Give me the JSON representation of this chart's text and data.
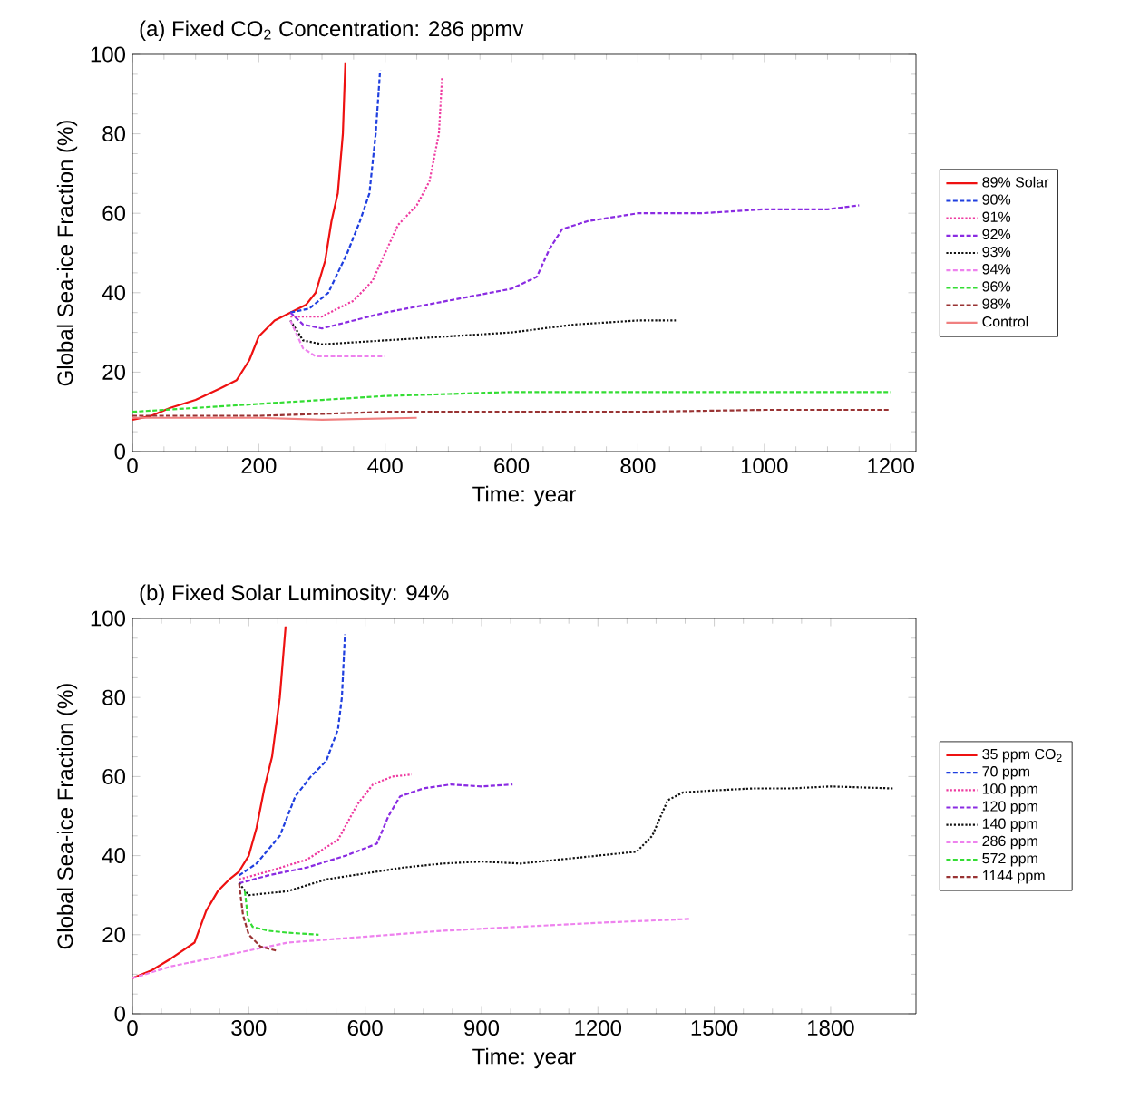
{
  "chart_data": [
    {
      "type": "line",
      "title": "(a) Fixed CO$_{2}$ Concentration: 286 ppmv",
      "xlabel": "Time: year",
      "ylabel": "Global Sea-ice Fraction (%)",
      "xlim": [
        0,
        1240
      ],
      "ylim": [
        0,
        100
      ],
      "xticks": [
        0,
        200,
        400,
        600,
        800,
        1000,
        1200
      ],
      "yticks": [
        0,
        20,
        40,
        60,
        80,
        100
      ],
      "legend": "right",
      "series": [
        {
          "name": "89% Solar",
          "color": "#ee1111",
          "line_style": "solid",
          "x": [
            0,
            30,
            60,
            100,
            140,
            165,
            185,
            200,
            225,
            250,
            275,
            290,
            305,
            315,
            325,
            333,
            337
          ],
          "values": [
            8,
            9,
            11,
            13,
            16,
            18,
            23,
            29,
            33,
            35,
            37,
            40,
            48,
            58,
            65,
            80,
            98
          ]
        },
        {
          "name": "90%",
          "color": "#1f3fdf",
          "line_style": "dashed",
          "x": [
            250,
            280,
            310,
            340,
            360,
            375,
            385,
            392
          ],
          "values": [
            35,
            36,
            40,
            50,
            58,
            65,
            80,
            96
          ]
        },
        {
          "name": "91%",
          "color": "#ee3aa0",
          "line_style": "dotted",
          "x": [
            250,
            300,
            350,
            380,
            400,
            420,
            450,
            470,
            485,
            490
          ],
          "values": [
            34,
            34,
            38,
            43,
            50,
            57,
            62,
            68,
            80,
            94
          ]
        },
        {
          "name": "92%",
          "color": "#8a2be2",
          "line_style": "dashed",
          "x": [
            250,
            270,
            300,
            350,
            400,
            500,
            600,
            640,
            660,
            680,
            720,
            800,
            900,
            1000,
            1050,
            1100,
            1150
          ],
          "values": [
            35,
            32,
            31,
            33,
            35,
            38,
            41,
            44,
            51,
            56,
            58,
            60,
            60,
            61,
            61,
            61,
            62
          ]
        },
        {
          "name": "93%",
          "color": "#111111",
          "line_style": "dotted",
          "x": [
            250,
            270,
            300,
            400,
            500,
            600,
            650,
            700,
            800,
            860
          ],
          "values": [
            33,
            28,
            27,
            28,
            29,
            30,
            31,
            32,
            33,
            33
          ]
        },
        {
          "name": "94%",
          "color": "#ee82ee",
          "line_style": "dashed",
          "x": [
            250,
            270,
            290,
            350,
            400
          ],
          "values": [
            33,
            26,
            24,
            24,
            24
          ]
        },
        {
          "name": "96%",
          "color": "#33dd33",
          "line_style": "dashed",
          "x": [
            0,
            100,
            200,
            300,
            400,
            500,
            600,
            800,
            1000,
            1200
          ],
          "values": [
            10,
            11,
            12,
            13,
            14,
            14.5,
            15,
            15,
            15,
            15
          ]
        },
        {
          "name": "98%",
          "color": "#993333",
          "line_style": "dashed",
          "x": [
            0,
            200,
            400,
            600,
            800,
            1000,
            1200
          ],
          "values": [
            9,
            9,
            10,
            10,
            10,
            10.5,
            10.5
          ]
        },
        {
          "name": "Control",
          "color": "#f08080",
          "line_style": "solid",
          "x": [
            0,
            200,
            300,
            450
          ],
          "values": [
            8.5,
            8.5,
            8,
            8.5
          ]
        }
      ]
    },
    {
      "type": "line",
      "title": "(b) Fixed Solar Luminosity: 94%",
      "xlabel": "Time: year",
      "ylabel": "Global Sea-ice Fraction (%)",
      "xlim": [
        0,
        2020
      ],
      "ylim": [
        0,
        100
      ],
      "xticks": [
        0,
        300,
        600,
        900,
        1200,
        1500,
        1800
      ],
      "yticks": [
        0,
        20,
        40,
        60,
        80,
        100
      ],
      "legend": "right",
      "series": [
        {
          "name": "35 ppm CO$_{2}$",
          "color": "#ee1111",
          "line_style": "solid",
          "x": [
            0,
            50,
            100,
            160,
            190,
            220,
            250,
            275,
            300,
            320,
            340,
            360,
            380,
            395
          ],
          "values": [
            9,
            11,
            14,
            18,
            26,
            31,
            34,
            36,
            40,
            47,
            57,
            65,
            80,
            98
          ]
        },
        {
          "name": "70 ppm",
          "color": "#1f3fdf",
          "line_style": "dashed",
          "x": [
            275,
            320,
            380,
            420,
            460,
            500,
            530,
            540,
            548
          ],
          "values": [
            35,
            38,
            45,
            55,
            60,
            64,
            72,
            80,
            96
          ]
        },
        {
          "name": "100 ppm",
          "color": "#ee3aa0",
          "line_style": "dotted",
          "x": [
            275,
            350,
            450,
            530,
            580,
            620,
            670,
            720
          ],
          "values": [
            34,
            36,
            39,
            44,
            53,
            58,
            60,
            60.5
          ]
        },
        {
          "name": "120 ppm",
          "color": "#8a2be2",
          "line_style": "dashed",
          "x": [
            275,
            350,
            450,
            550,
            630,
            660,
            690,
            750,
            820,
            900,
            980
          ],
          "values": [
            33,
            35,
            37,
            40,
            43,
            50,
            55,
            57,
            58,
            57.5,
            58
          ]
        },
        {
          "name": "140 ppm",
          "color": "#111111",
          "line_style": "dotted",
          "x": [
            275,
            300,
            400,
            500,
            600,
            700,
            800,
            900,
            1000,
            1100,
            1200,
            1300,
            1340,
            1380,
            1420,
            1500,
            1600,
            1700,
            1800,
            1960
          ],
          "values": [
            33,
            30,
            31,
            34,
            35.5,
            37,
            38,
            38.5,
            38,
            39,
            40,
            41,
            45,
            54,
            56,
            56.5,
            57,
            57,
            57.5,
            57
          ]
        },
        {
          "name": "286 ppm",
          "color": "#ee82ee",
          "line_style": "dashed",
          "x": [
            0,
            100,
            200,
            300,
            400,
            600,
            800,
            1000,
            1200,
            1440
          ],
          "values": [
            9,
            12,
            14,
            16,
            18,
            19.5,
            21,
            22,
            23,
            24
          ]
        },
        {
          "name": "572 ppm",
          "color": "#33dd33",
          "line_style": "dashed",
          "x": [
            290,
            298,
            310,
            350,
            400,
            480
          ],
          "values": [
            31,
            24,
            22,
            21,
            20.5,
            20
          ]
        },
        {
          "name": "1144 ppm",
          "color": "#993333",
          "line_style": "dashed",
          "x": [
            275,
            285,
            300,
            330,
            370
          ],
          "values": [
            33,
            25,
            20,
            17,
            16
          ]
        }
      ]
    }
  ]
}
